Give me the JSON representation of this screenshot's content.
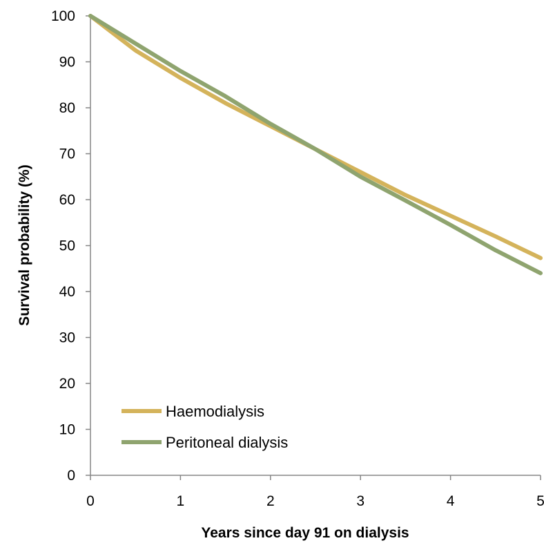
{
  "chart_data": {
    "type": "line",
    "xlabel": "Years since day 91 on dialysis",
    "ylabel": "Survival probability (%)",
    "xlim": [
      0,
      5
    ],
    "ylim": [
      0,
      100
    ],
    "xticks": [
      "0",
      "1",
      "2",
      "3",
      "4",
      "5"
    ],
    "yticks": [
      "0",
      "10",
      "20",
      "30",
      "40",
      "50",
      "60",
      "70",
      "80",
      "90",
      "100"
    ],
    "grid": false,
    "legend_position": "bottom-left",
    "x": [
      0,
      0.5,
      1,
      1.5,
      2,
      2.5,
      3,
      3.5,
      4,
      4.5,
      5
    ],
    "series": [
      {
        "name": "Haemodialysis",
        "color": "#d4b35b",
        "values": [
          100,
          92.5,
          86.5,
          81.0,
          76.0,
          71.0,
          66.0,
          61.0,
          56.5,
          52.0,
          47.3
        ]
      },
      {
        "name": "Peritoneal dialysis",
        "color": "#8fa46f",
        "values": [
          100,
          94.0,
          88.0,
          82.5,
          76.5,
          71.0,
          65.0,
          59.8,
          54.5,
          49.0,
          44.0
        ]
      }
    ]
  }
}
